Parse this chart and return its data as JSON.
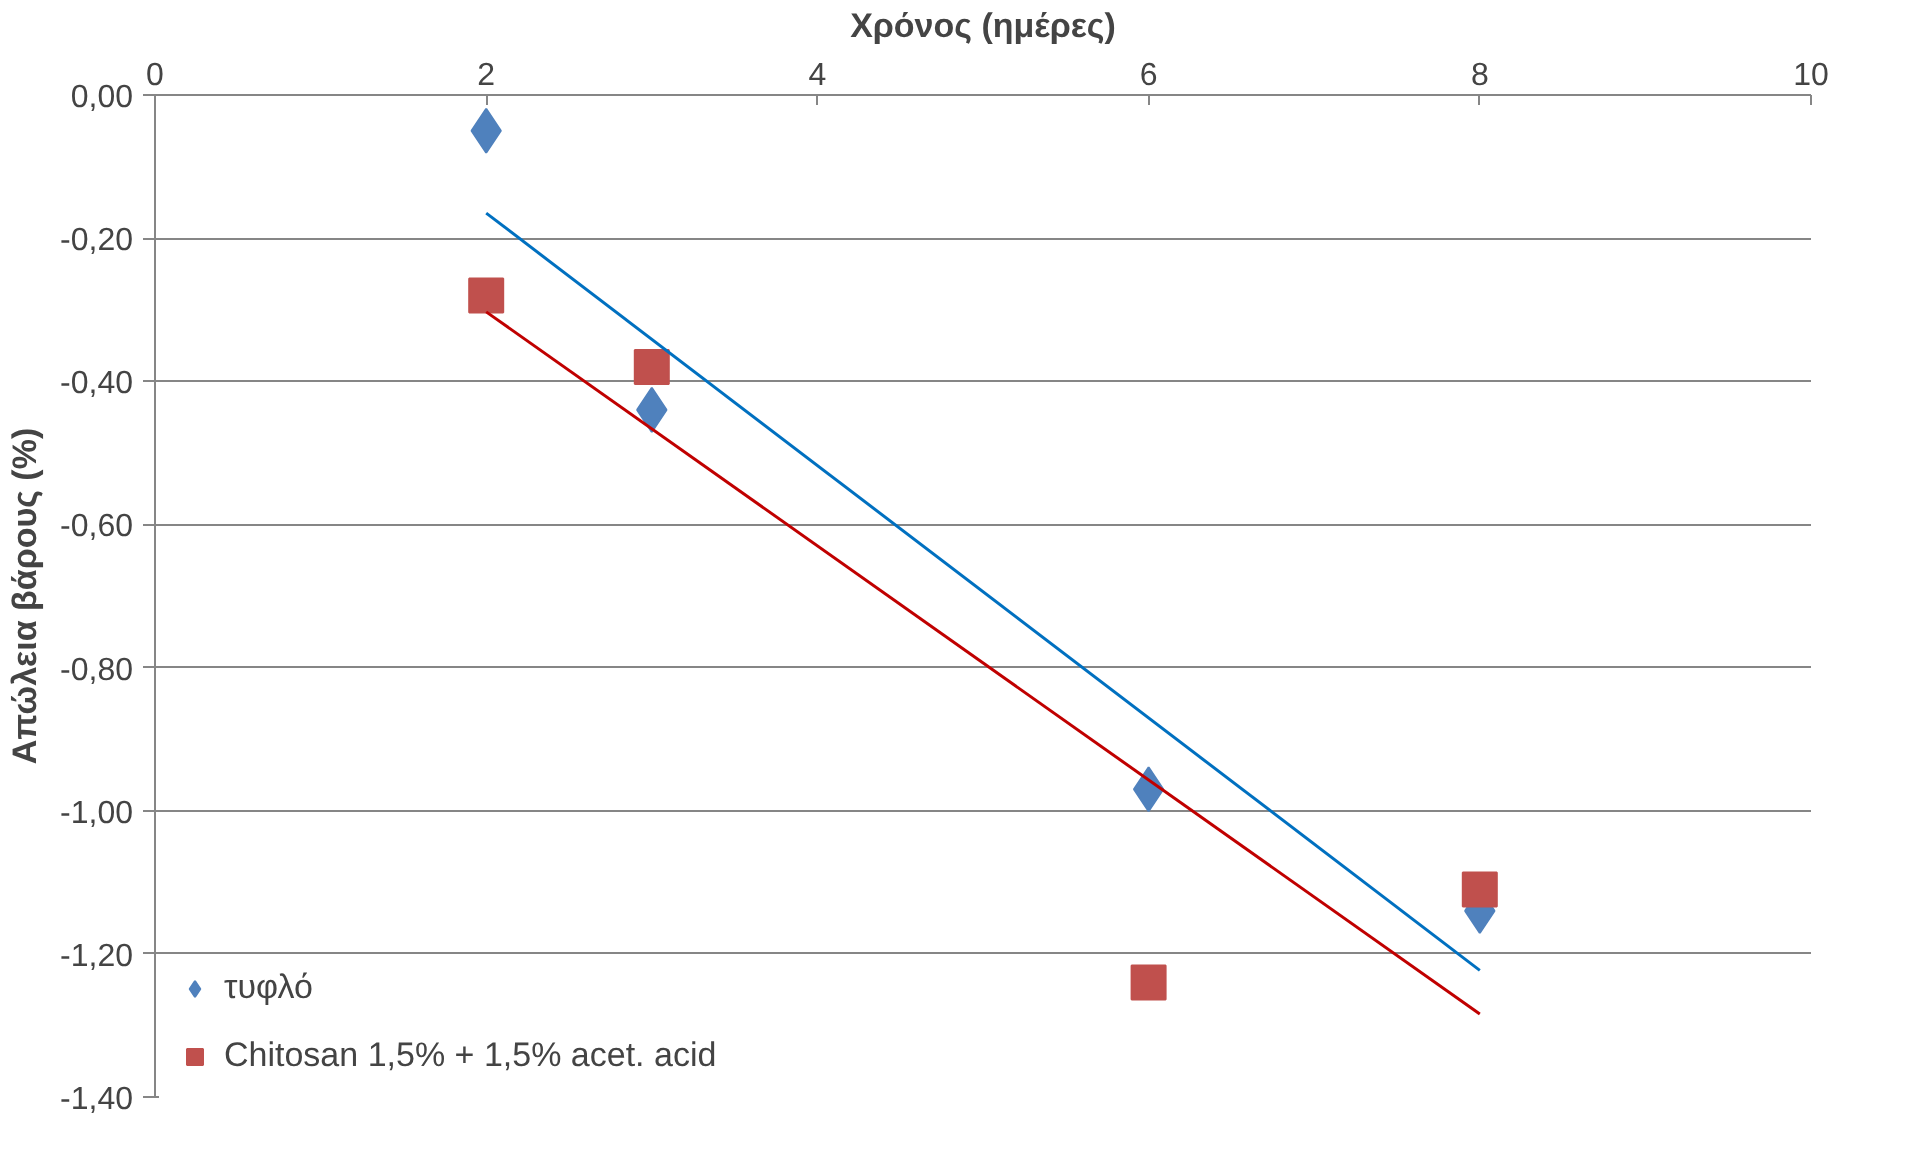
{
  "chart_data": {
    "type": "scatter",
    "xlabel": "Χρόνος (ημέρες)",
    "ylabel": "Απώλεια βάρους (%)",
    "xlim": [
      0,
      10
    ],
    "xticks": [
      0,
      2,
      4,
      6,
      8,
      10
    ],
    "ylim": [
      -1.4,
      0
    ],
    "yticks": [
      {
        "value": 0,
        "label": "0,00"
      },
      {
        "value": -0.2,
        "label": "-0,20"
      },
      {
        "value": -0.4,
        "label": "-0,40"
      },
      {
        "value": -0.6,
        "label": "-0,60"
      },
      {
        "value": -0.8,
        "label": "-0,80"
      },
      {
        "value": -1.0,
        "label": "-1,00"
      },
      {
        "value": -1.2,
        "label": "-1,20"
      },
      {
        "value": -1.4,
        "label": "-1,40"
      }
    ],
    "grid": "y",
    "legend": "bottom left",
    "series": [
      {
        "name": "τυφλό",
        "marker": "diamond",
        "color": "#4f81bd",
        "x": [
          2,
          3,
          6,
          8
        ],
        "values": [
          -0.05,
          -0.44,
          -0.97,
          -1.14
        ]
      },
      {
        "name": "Chitosan 1,5% + 1,5% acet. acid",
        "marker": "square",
        "color": "#c0504d",
        "x": [
          2,
          3,
          6,
          8
        ],
        "values": [
          -0.28,
          -0.38,
          -1.24,
          -1.11
        ]
      },
      {
        "type": "line",
        "color": "#0070c0",
        "x": [
          2,
          8
        ],
        "values": [
          -0.165,
          -1.223
        ]
      },
      {
        "type": "line",
        "color": "#c00000",
        "x": [
          2,
          8
        ],
        "values": [
          -0.303,
          -1.284
        ]
      }
    ]
  }
}
